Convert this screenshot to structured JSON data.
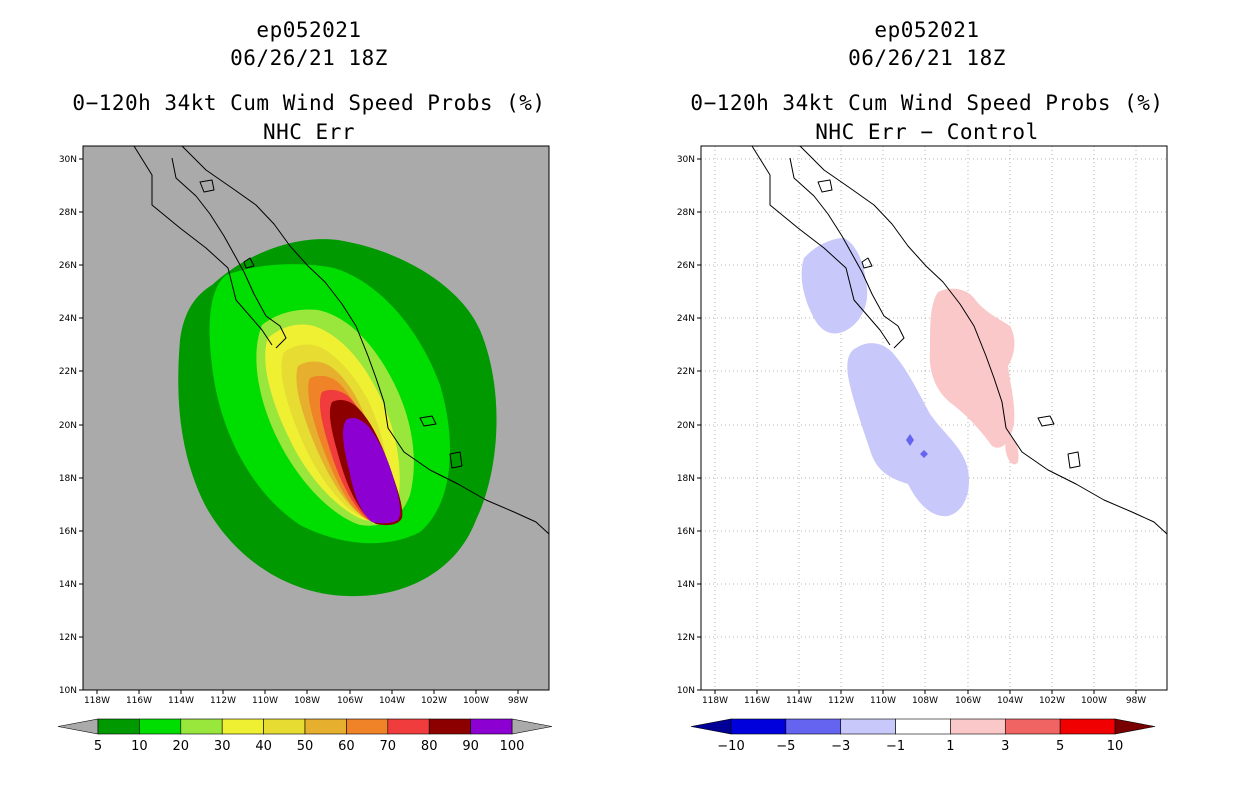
{
  "panels": [
    {
      "storm": "ep052021",
      "datetime": "06/26/21 18Z",
      "product": "0−120h 34kt Cum Wind Speed Probs (%)",
      "subtitle": "NHC Err"
    },
    {
      "storm": "ep052021",
      "datetime": "06/26/21 18Z",
      "product": "0−120h 34kt Cum Wind Speed Probs (%)",
      "subtitle": "NHC Err − Control"
    }
  ],
  "lat_labels": [
    "30N",
    "28N",
    "26N",
    "24N",
    "22N",
    "20N",
    "18N",
    "16N",
    "14N",
    "12N",
    "10N"
  ],
  "lon_labels": [
    "118W",
    "116W",
    "114W",
    "112W",
    "110W",
    "108W",
    "106W",
    "104W",
    "102W",
    "100W",
    "98W"
  ],
  "colorbar_left": {
    "labels": [
      "5",
      "10",
      "20",
      "30",
      "40",
      "50",
      "60",
      "70",
      "80",
      "90",
      "100"
    ],
    "colors": [
      "#009900",
      "#00dd00",
      "#99e63c",
      "#f0f032",
      "#e6dc32",
      "#e6af2d",
      "#f08228",
      "#f03c3c",
      "#8c0000",
      "#8c00d2"
    ],
    "end_color": "#aaaaaa"
  },
  "colorbar_right": {
    "labels": [
      "−10",
      "−5",
      "−3",
      "−1",
      "1",
      "3",
      "5",
      "10"
    ],
    "colors": [
      "#0000dc",
      "#6464f0",
      "#c8c8fa",
      "#ffffff",
      "#fac8c8",
      "#f06464",
      "#f00000"
    ],
    "low_end_color": "#000096",
    "high_end_color": "#780000"
  },
  "colors": {
    "background_gray": "#aaaaaa",
    "coast": "#000000",
    "grid": "#a0a0a0"
  }
}
